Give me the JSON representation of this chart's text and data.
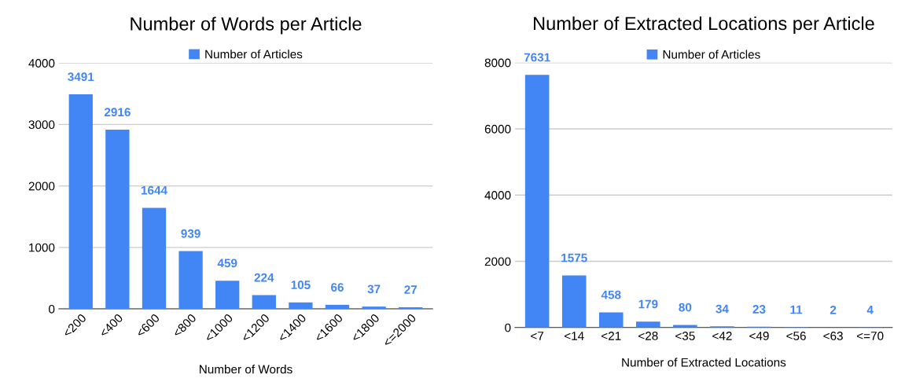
{
  "chart_data": [
    {
      "type": "bar",
      "title": "Number of Words per Article",
      "xlabel": "Number of Words",
      "categories": [
        "<200",
        "<400",
        "<600",
        "<800",
        "<1000",
        "<1200",
        "<1400",
        "<1600",
        "<1800",
        "<=2000"
      ],
      "series": [
        {
          "name": "Number of Articles",
          "color": "#4285f4",
          "values": [
            3491,
            2916,
            1644,
            939,
            459,
            224,
            105,
            66,
            37,
            27
          ]
        }
      ],
      "ylim": [
        0,
        4000
      ],
      "yticks": [
        0,
        1000,
        2000,
        3000,
        4000
      ],
      "grid": "y",
      "legend": "top",
      "data_labels": true
    },
    {
      "type": "bar",
      "title": "Number of Extracted Locations per Article",
      "xlabel": "Number of Extracted Locations",
      "categories": [
        "<7",
        "<14",
        "<21",
        "<28",
        "<35",
        "<42",
        "<49",
        "<56",
        "<63",
        "<=70"
      ],
      "series": [
        {
          "name": "Number of Articles",
          "color": "#4285f4",
          "values": [
            7631,
            1575,
            458,
            179,
            80,
            34,
            23,
            11,
            2,
            4
          ]
        }
      ],
      "ylim": [
        0,
        8000
      ],
      "yticks": [
        0,
        2000,
        4000,
        6000,
        8000
      ],
      "grid": "y",
      "legend": "top",
      "data_labels": true
    }
  ]
}
